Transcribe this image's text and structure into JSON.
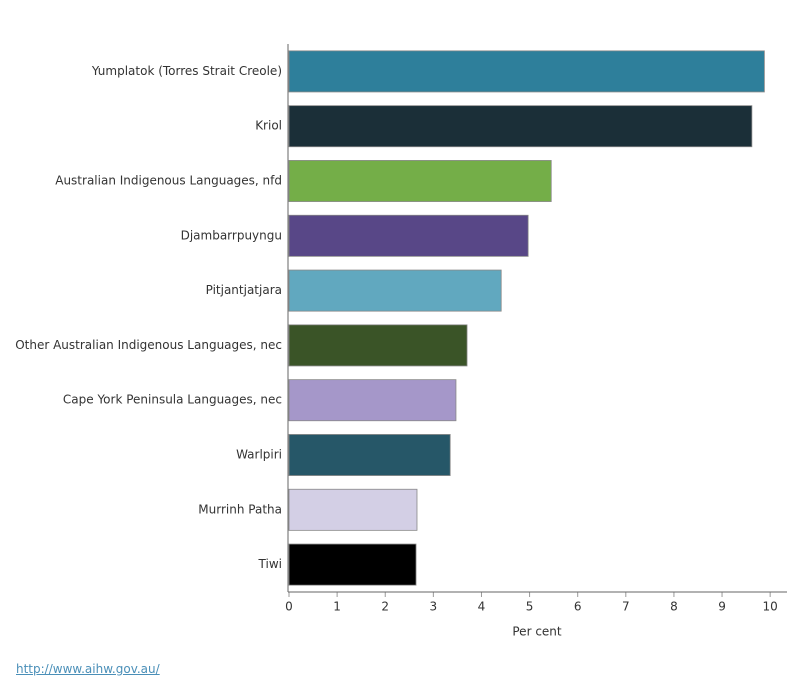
{
  "chart_data": {
    "type": "bar",
    "orientation": "horizontal",
    "categories": [
      "Yumplatok (Torres Strait Creole)",
      "Kriol",
      "Australian Indigenous Languages, nfd",
      "Djambarrpuyngu",
      "Pitjantjatjara",
      "Other Australian Indigenous Languages, nec",
      "Cape York Peninsula Languages, nec",
      "Warlpiri",
      "Murrinh Patha",
      "Tiwi"
    ],
    "values": [
      9.88,
      9.62,
      5.45,
      4.97,
      4.41,
      3.7,
      3.47,
      3.35,
      2.66,
      2.64
    ],
    "colors": [
      "#2e7f9b",
      "#1b2f38",
      "#74ae48",
      "#584787",
      "#61a8bf",
      "#3a5427",
      "#a597c9",
      "#265768",
      "#d3cfe5",
      "#000000"
    ],
    "x_label": "Per cent",
    "xlim": [
      0,
      10.35
    ],
    "xticks": [
      0,
      1,
      2,
      3,
      4,
      5,
      6,
      7,
      8,
      9,
      10
    ]
  },
  "footer_link": "http://www.aihw.gov.au/"
}
